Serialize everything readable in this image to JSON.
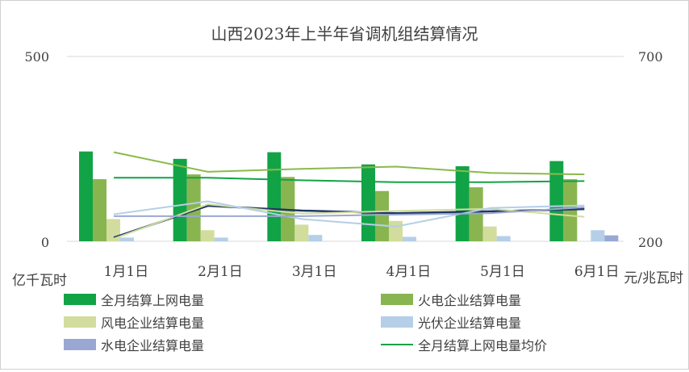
{
  "chart_data": {
    "type": "bar",
    "title": "山西2023年上半年省调机组结算情况",
    "categories": [
      "1月1日",
      "2月1日",
      "3月1日",
      "4月1日",
      "5月1日",
      "6月1日"
    ],
    "left_axis": {
      "unit": "亿千瓦时",
      "ylim": [
        0,
        500
      ],
      "ticks": [
        "0",
        "500"
      ]
    },
    "right_axis": {
      "unit": "元/兆瓦时",
      "ylim": [
        200,
        700
      ],
      "ticks": [
        "200",
        "700"
      ]
    },
    "grid": true,
    "legend_position": "bottom",
    "series": [
      {
        "name": "全月结算上网电量",
        "type": "bar",
        "axis": "left",
        "color": "#12a346",
        "values": [
          243,
          223,
          241,
          208,
          203,
          217
        ]
      },
      {
        "name": "火电企业结算电量",
        "type": "bar",
        "axis": "left",
        "color": "#88b550",
        "values": [
          168,
          181,
          174,
          136,
          146,
          168
        ]
      },
      {
        "name": "风电企业结算电量",
        "type": "bar",
        "axis": "left",
        "color": "#d2dd9d",
        "values": [
          60,
          30,
          45,
          55,
          40,
          0
        ]
      },
      {
        "name": "光伏企业结算电量",
        "type": "bar",
        "axis": "left",
        "color": "#b4cfe7",
        "values": [
          10,
          10,
          17,
          12,
          14,
          30
        ]
      },
      {
        "name": "水电企业结算电量",
        "type": "bar",
        "axis": "left",
        "color": "#9aa7d2",
        "values": [
          0,
          0,
          0,
          0,
          0,
          16
        ]
      },
      {
        "name": "全月结算上网电量均价",
        "type": "line",
        "axis": "right",
        "color": "#12a346",
        "values": [
          372,
          372,
          365,
          360,
          360,
          363
        ]
      }
    ],
    "extra_lines": [
      {
        "axis": "right",
        "color": "#8cb94c",
        "values": [
          441,
          388,
          396,
          402,
          385,
          381
        ]
      },
      {
        "axis": "right",
        "color": "#1f3864",
        "values": [
          210,
          296,
          283,
          276,
          281,
          287
        ]
      },
      {
        "axis": "right",
        "color": "#d2dd9d",
        "values": [
          207,
          300,
          275,
          282,
          288,
          266
        ]
      },
      {
        "axis": "right",
        "color": "#b4cfe7",
        "values": [
          273,
          308,
          260,
          240,
          290,
          297
        ]
      },
      {
        "axis": "right",
        "color": "#9aa7d2",
        "values": [
          268,
          268,
          268,
          272,
          276,
          292
        ]
      }
    ]
  }
}
